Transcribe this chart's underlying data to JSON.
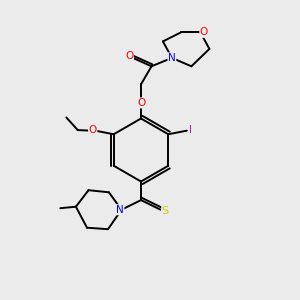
{
  "bg_color": "#ebebeb",
  "bond_color": "#000000",
  "atom_colors": {
    "O": "#ff0000",
    "N": "#0000ff",
    "S": "#cccc00",
    "I": "#cc00cc",
    "C": "#000000"
  },
  "lw": 1.4
}
